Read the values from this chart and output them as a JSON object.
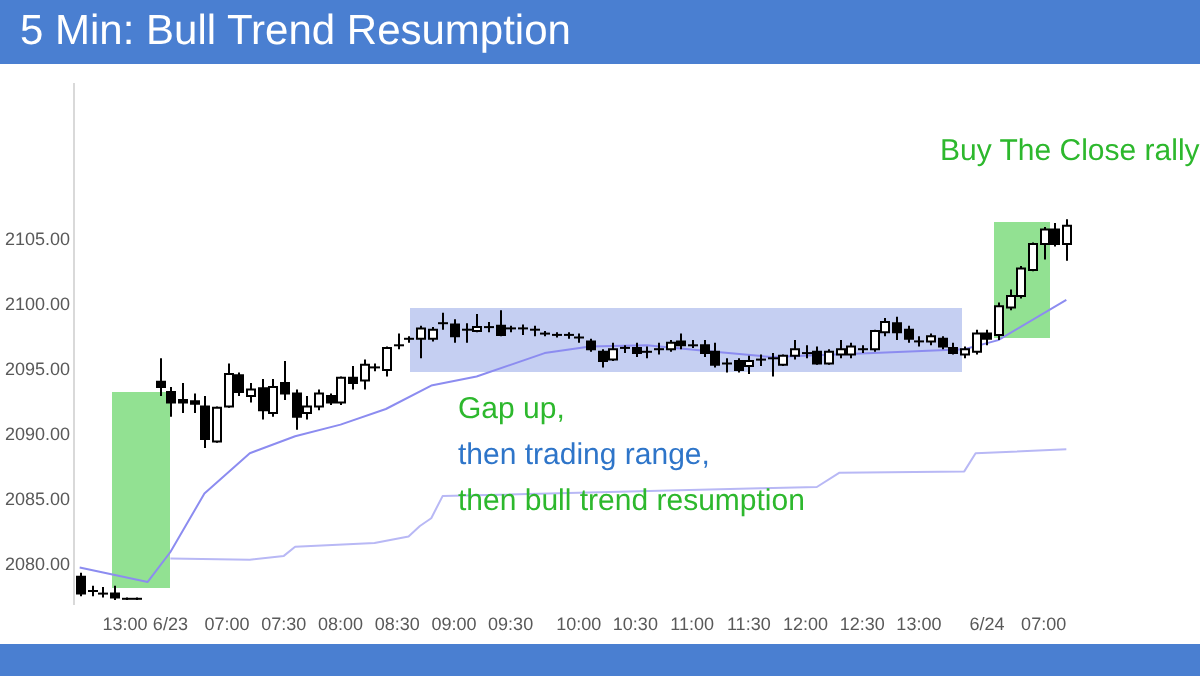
{
  "chart_data": {
    "type": "candlestick",
    "title": "5 Min: Bull Trend Resumption",
    "categories": [
      null,
      null,
      null,
      null,
      "13:00",
      null,
      null,
      null,
      "6/23",
      null,
      null,
      null,
      null,
      "07:00",
      null,
      null,
      null,
      null,
      "07:30",
      null,
      null,
      null,
      null,
      "08:00",
      null,
      null,
      null,
      null,
      "08:30",
      null,
      null,
      null,
      null,
      "09:00",
      null,
      null,
      null,
      null,
      "09:30",
      null,
      null,
      null,
      null,
      null,
      "10:00",
      null,
      null,
      null,
      null,
      "10:30",
      null,
      null,
      null,
      null,
      "11:00",
      null,
      null,
      null,
      null,
      "11:30",
      null,
      null,
      null,
      null,
      "12:00",
      null,
      null,
      null,
      null,
      "12:30",
      null,
      null,
      null,
      null,
      "13:00",
      null,
      null,
      null,
      null,
      null,
      "6/24",
      null,
      null,
      null,
      null,
      "07:00",
      null,
      null
    ],
    "ohlc": [
      [
        2079.1,
        2079.4,
        2077.6,
        2077.8
      ],
      [
        2078.0,
        2078.4,
        2077.6,
        2078.0
      ],
      [
        2077.8,
        2078.3,
        2077.5,
        2077.8
      ],
      [
        2077.8,
        2078.4,
        2077.3,
        2077.5
      ],
      [
        2077.4,
        2077.5,
        2077.3,
        2077.4
      ],
      [
        2077.4,
        2077.5,
        2077.3,
        2077.4
      ],
      null,
      [
        2094.1,
        2095.9,
        2093.0,
        2093.7
      ],
      [
        2093.3,
        2093.7,
        2091.4,
        2092.5
      ],
      [
        2092.7,
        2094.0,
        2091.7,
        2092.5
      ],
      [
        2092.6,
        2093.2,
        2091.7,
        2092.4
      ],
      [
        2092.2,
        2093.0,
        2089.0,
        2089.7
      ],
      [
        2089.5,
        2092.2,
        2089.4,
        2092.1
      ],
      [
        2092.2,
        2095.5,
        2092.1,
        2094.7
      ],
      [
        2094.6,
        2094.8,
        2093.0,
        2093.3
      ],
      [
        2093.0,
        2094.0,
        2092.5,
        2093.5
      ],
      [
        2093.6,
        2094.3,
        2091.2,
        2091.9
      ],
      [
        2091.7,
        2094.3,
        2091.4,
        2093.7
      ],
      [
        2094.0,
        2095.7,
        2092.7,
        2093.2
      ],
      [
        2093.2,
        2093.5,
        2090.4,
        2091.4
      ],
      [
        2091.7,
        2093.0,
        2091.2,
        2092.2
      ],
      [
        2092.2,
        2093.5,
        2091.9,
        2093.2
      ],
      [
        2093.0,
        2093.2,
        2092.3,
        2092.5
      ],
      [
        2092.5,
        2094.5,
        2092.3,
        2094.4
      ],
      [
        2094.4,
        2095.3,
        2093.5,
        2094.0
      ],
      [
        2094.2,
        2095.8,
        2093.5,
        2095.4
      ],
      [
        2095.1,
        2095.5,
        2094.9,
        2095.2
      ],
      [
        2095.0,
        2096.8,
        2094.5,
        2096.7
      ],
      [
        2096.8,
        2097.8,
        2096.6,
        2096.9
      ],
      [
        2097.3,
        2097.6,
        2097.1,
        2097.4
      ],
      [
        2097.4,
        2098.4,
        2095.9,
        2098.2
      ],
      [
        2097.4,
        2098.3,
        2097.2,
        2098.1
      ],
      [
        2098.5,
        2099.4,
        2098.1,
        2098.6
      ],
      [
        2098.5,
        2098.9,
        2097.1,
        2097.6
      ],
      [
        2098.0,
        2098.6,
        2097.1,
        2098.1
      ],
      [
        2098.0,
        2099.3,
        2097.9,
        2098.3
      ],
      [
        2098.2,
        2098.7,
        2097.9,
        2098.3
      ],
      [
        2098.4,
        2099.6,
        2097.6,
        2097.7
      ],
      [
        2098.1,
        2098.4,
        2097.9,
        2098.2
      ],
      [
        2098.1,
        2098.5,
        2097.7,
        2098.2
      ],
      [
        2098.1,
        2098.4,
        2097.6,
        2098.0
      ],
      [
        2097.8,
        2098.0,
        2097.6,
        2097.8
      ],
      [
        2097.7,
        2097.9,
        2097.5,
        2097.7
      ],
      [
        2097.7,
        2097.9,
        2097.4,
        2097.6
      ],
      [
        2097.5,
        2097.8,
        2097.1,
        2097.5
      ],
      [
        2097.2,
        2097.4,
        2096.4,
        2096.6
      ],
      [
        2096.4,
        2096.6,
        2095.2,
        2095.7
      ],
      [
        2095.8,
        2097.1,
        2095.7,
        2096.6
      ],
      [
        2096.7,
        2096.9,
        2096.3,
        2096.7
      ],
      [
        2096.7,
        2097.1,
        2096.0,
        2096.3
      ],
      [
        2096.4,
        2096.8,
        2095.9,
        2096.4
      ],
      [
        2096.6,
        2097.1,
        2096.2,
        2096.6
      ],
      [
        2096.6,
        2097.3,
        2096.4,
        2097.1
      ],
      [
        2097.2,
        2097.8,
        2096.6,
        2096.9
      ],
      [
        2096.9,
        2097.3,
        2096.7,
        2096.9
      ],
      [
        2096.9,
        2097.3,
        2096.0,
        2096.3
      ],
      [
        2096.4,
        2097.1,
        2095.2,
        2095.4
      ],
      [
        2095.5,
        2095.9,
        2094.8,
        2095.5
      ],
      [
        2095.7,
        2095.9,
        2094.8,
        2095.0
      ],
      [
        2095.3,
        2096.1,
        2094.7,
        2095.7
      ],
      [
        2095.8,
        2096.2,
        2095.3,
        2095.8
      ],
      [
        2095.9,
        2096.3,
        2094.5,
        2095.9
      ],
      [
        2095.4,
        2096.2,
        2095.3,
        2096.1
      ],
      [
        2096.1,
        2097.3,
        2095.8,
        2096.6
      ],
      [
        2096.3,
        2096.9,
        2095.9,
        2096.3
      ],
      [
        2096.4,
        2096.8,
        2095.4,
        2095.5
      ],
      [
        2095.5,
        2096.6,
        2095.4,
        2096.4
      ],
      [
        2096.2,
        2097.3,
        2095.9,
        2096.6
      ],
      [
        2096.2,
        2097.1,
        2095.9,
        2096.8
      ],
      [
        2096.6,
        2096.9,
        2096.3,
        2096.6
      ],
      [
        2096.6,
        2098.1,
        2096.4,
        2098.0
      ],
      [
        2097.9,
        2099.0,
        2097.6,
        2098.7
      ],
      [
        2098.6,
        2099.1,
        2097.3,
        2097.9
      ],
      [
        2098.1,
        2098.4,
        2097.1,
        2097.4
      ],
      [
        2097.2,
        2097.6,
        2096.8,
        2097.2
      ],
      [
        2097.2,
        2097.8,
        2096.9,
        2097.6
      ],
      [
        2097.4,
        2097.6,
        2096.6,
        2096.8
      ],
      [
        2096.7,
        2097.1,
        2096.2,
        2096.3
      ],
      [
        2096.2,
        2096.8,
        2095.9,
        2096.6
      ],
      [
        2096.4,
        2098.1,
        2096.2,
        2097.8
      ],
      [
        2097.8,
        2098.1,
        2096.9,
        2097.4
      ],
      [
        2097.7,
        2100.2,
        2097.3,
        2099.9
      ],
      [
        2099.8,
        2101.2,
        2099.6,
        2100.7
      ],
      [
        2100.7,
        2103.0,
        2100.5,
        2102.8
      ],
      [
        2102.7,
        2104.8,
        2102.6,
        2104.7
      ],
      [
        2104.7,
        2106.0,
        2103.5,
        2105.8
      ],
      [
        2105.8,
        2106.3,
        2104.5,
        2104.7
      ],
      [
        2104.7,
        2106.6,
        2103.4,
        2106.1
      ]
    ],
    "series": [
      {
        "type": "line",
        "color": "#8c8cf0",
        "values": [
          2079.8,
          null,
          null,
          null,
          null,
          null,
          2078.7,
          null,
          2081.0,
          null,
          null,
          2085.5,
          null,
          null,
          null,
          2088.6,
          null,
          null,
          null,
          2089.9,
          null,
          null,
          null,
          2090.8,
          null,
          null,
          null,
          2092.0,
          null,
          null,
          null,
          2093.8,
          null,
          null,
          null,
          2094.5,
          null,
          null,
          null,
          null,
          null,
          2096.3,
          null,
          null,
          null,
          2096.8,
          null,
          null,
          null,
          null,
          2096.9,
          null,
          null,
          null,
          null,
          null,
          2096.4,
          null,
          null,
          null,
          null,
          2096.0,
          null,
          null,
          null,
          null,
          null,
          null,
          null,
          null,
          2096.3,
          null,
          null,
          null,
          null,
          null,
          null,
          null,
          2096.6,
          null,
          null,
          2097.3,
          null,
          null,
          null,
          null,
          null,
          2100.4
        ]
      },
      {
        "type": "line",
        "color": "#b8b8f5",
        "values": [
          null,
          null,
          null,
          null,
          null,
          null,
          null,
          null,
          2080.5,
          null,
          null,
          null,
          null,
          null,
          null,
          2080.4,
          null,
          null,
          2080.7,
          2081.4,
          null,
          null,
          null,
          null,
          null,
          null,
          2081.7,
          null,
          null,
          2082.2,
          2083.0,
          2083.6,
          2085.3,
          null,
          null,
          null,
          null,
          null,
          null,
          null,
          null,
          null,
          null,
          null,
          null,
          null,
          null,
          null,
          null,
          null,
          null,
          null,
          null,
          null,
          null,
          null,
          null,
          null,
          null,
          null,
          2085.9,
          null,
          null,
          null,
          null,
          2086.0,
          null,
          2087.1,
          null,
          null,
          null,
          null,
          null,
          null,
          null,
          null,
          null,
          null,
          2087.2,
          2088.6,
          null,
          null,
          null,
          null,
          null,
          null,
          null,
          2088.9
        ]
      }
    ],
    "ylim": [
      2077,
      2117
    ],
    "yticks": [
      {
        "value": 2080,
        "label": "2080.00"
      },
      {
        "value": 2085,
        "label": "2085.00"
      },
      {
        "value": 2090,
        "label": "2090.00"
      },
      {
        "value": 2095,
        "label": "2095.00"
      },
      {
        "value": 2100,
        "label": "2100.00"
      },
      {
        "value": 2105,
        "label": "2105.00"
      }
    ],
    "marker": "none",
    "annotations": [
      "Gap up,",
      "then trading range,",
      "then bull trend resumption",
      "Buy The Close rally"
    ]
  }
}
